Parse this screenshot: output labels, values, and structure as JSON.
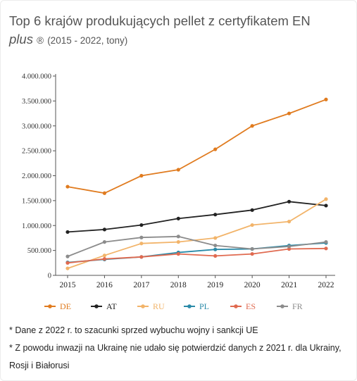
{
  "title": {
    "line1": "Top 6 krajów produkujących pellet z certyfikatem EN",
    "italic": "plus",
    "reg": "®",
    "suffix": "(2015 - 2022, tony)"
  },
  "chart_data": {
    "type": "line",
    "x": [
      "2015",
      "2016",
      "2017",
      "2018",
      "2019",
      "2020",
      "2021",
      "2022"
    ],
    "ylim": [
      0,
      4000000
    ],
    "yticks": [
      0,
      500000,
      1000000,
      1500000,
      2000000,
      2500000,
      3000000,
      3500000,
      4000000
    ],
    "ytick_labels": [
      "0",
      "500.000",
      "1.000.000",
      "1.500.000",
      "2.000.000",
      "2.500.000",
      "3.000.000",
      "3.500.000",
      "4.000.000"
    ],
    "grid": false,
    "legend_position": "bottom",
    "series": [
      {
        "name": "DE",
        "color": "#e07b1f",
        "values": [
          1780000,
          1650000,
          2000000,
          2120000,
          2530000,
          3000000,
          3250000,
          3530000
        ]
      },
      {
        "name": "AT",
        "color": "#222222",
        "values": [
          870000,
          920000,
          1010000,
          1140000,
          1220000,
          1310000,
          1480000,
          1400000
        ]
      },
      {
        "name": "RU",
        "color": "#f2b46a",
        "values": [
          140000,
          400000,
          640000,
          670000,
          750000,
          1010000,
          1080000,
          1530000
        ]
      },
      {
        "name": "PL",
        "color": "#2a8aa8",
        "values": [
          260000,
          320000,
          370000,
          460000,
          520000,
          530000,
          600000,
          650000
        ]
      },
      {
        "name": "ES",
        "color": "#e06a50",
        "values": [
          250000,
          330000,
          370000,
          430000,
          390000,
          430000,
          530000,
          540000
        ]
      },
      {
        "name": "FR",
        "color": "#8c8c8c",
        "values": [
          380000,
          670000,
          760000,
          780000,
          600000,
          530000,
          580000,
          670000
        ]
      }
    ]
  },
  "notes": [
    "* Dane z 2022 r. to szacunki sprzed wybuchu wojny i sankcji UE",
    "* Z powodu inwazji na Ukrainę nie udało się potwierdzić danych z 2021 r. dla Ukrainy, Rosji i Białorusi"
  ]
}
